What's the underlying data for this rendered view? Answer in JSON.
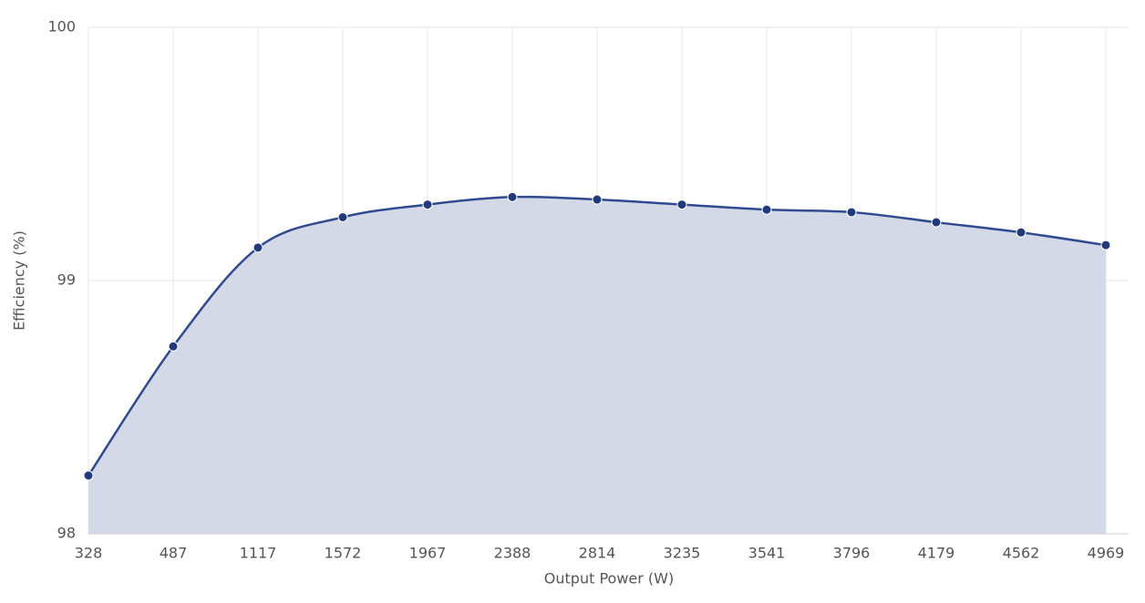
{
  "chart_data": {
    "type": "area",
    "x_label": "Output Power (W)",
    "y_label": "Efficiency (%)",
    "categories": [
      "328",
      "487",
      "1117",
      "1572",
      "1967",
      "2388",
      "2814",
      "3235",
      "3541",
      "3796",
      "4179",
      "4562",
      "4969"
    ],
    "values": [
      98.23,
      98.74,
      99.13,
      99.25,
      99.3,
      99.33,
      99.32,
      99.3,
      99.28,
      99.27,
      99.23,
      99.19,
      99.14
    ],
    "color": "#2f4a8f",
    "fill": "#d4d9e8",
    "marker_color": "#22397a",
    "ylim": [
      98,
      100
    ],
    "yticks": [
      98,
      99,
      100
    ],
    "grid": true
  }
}
